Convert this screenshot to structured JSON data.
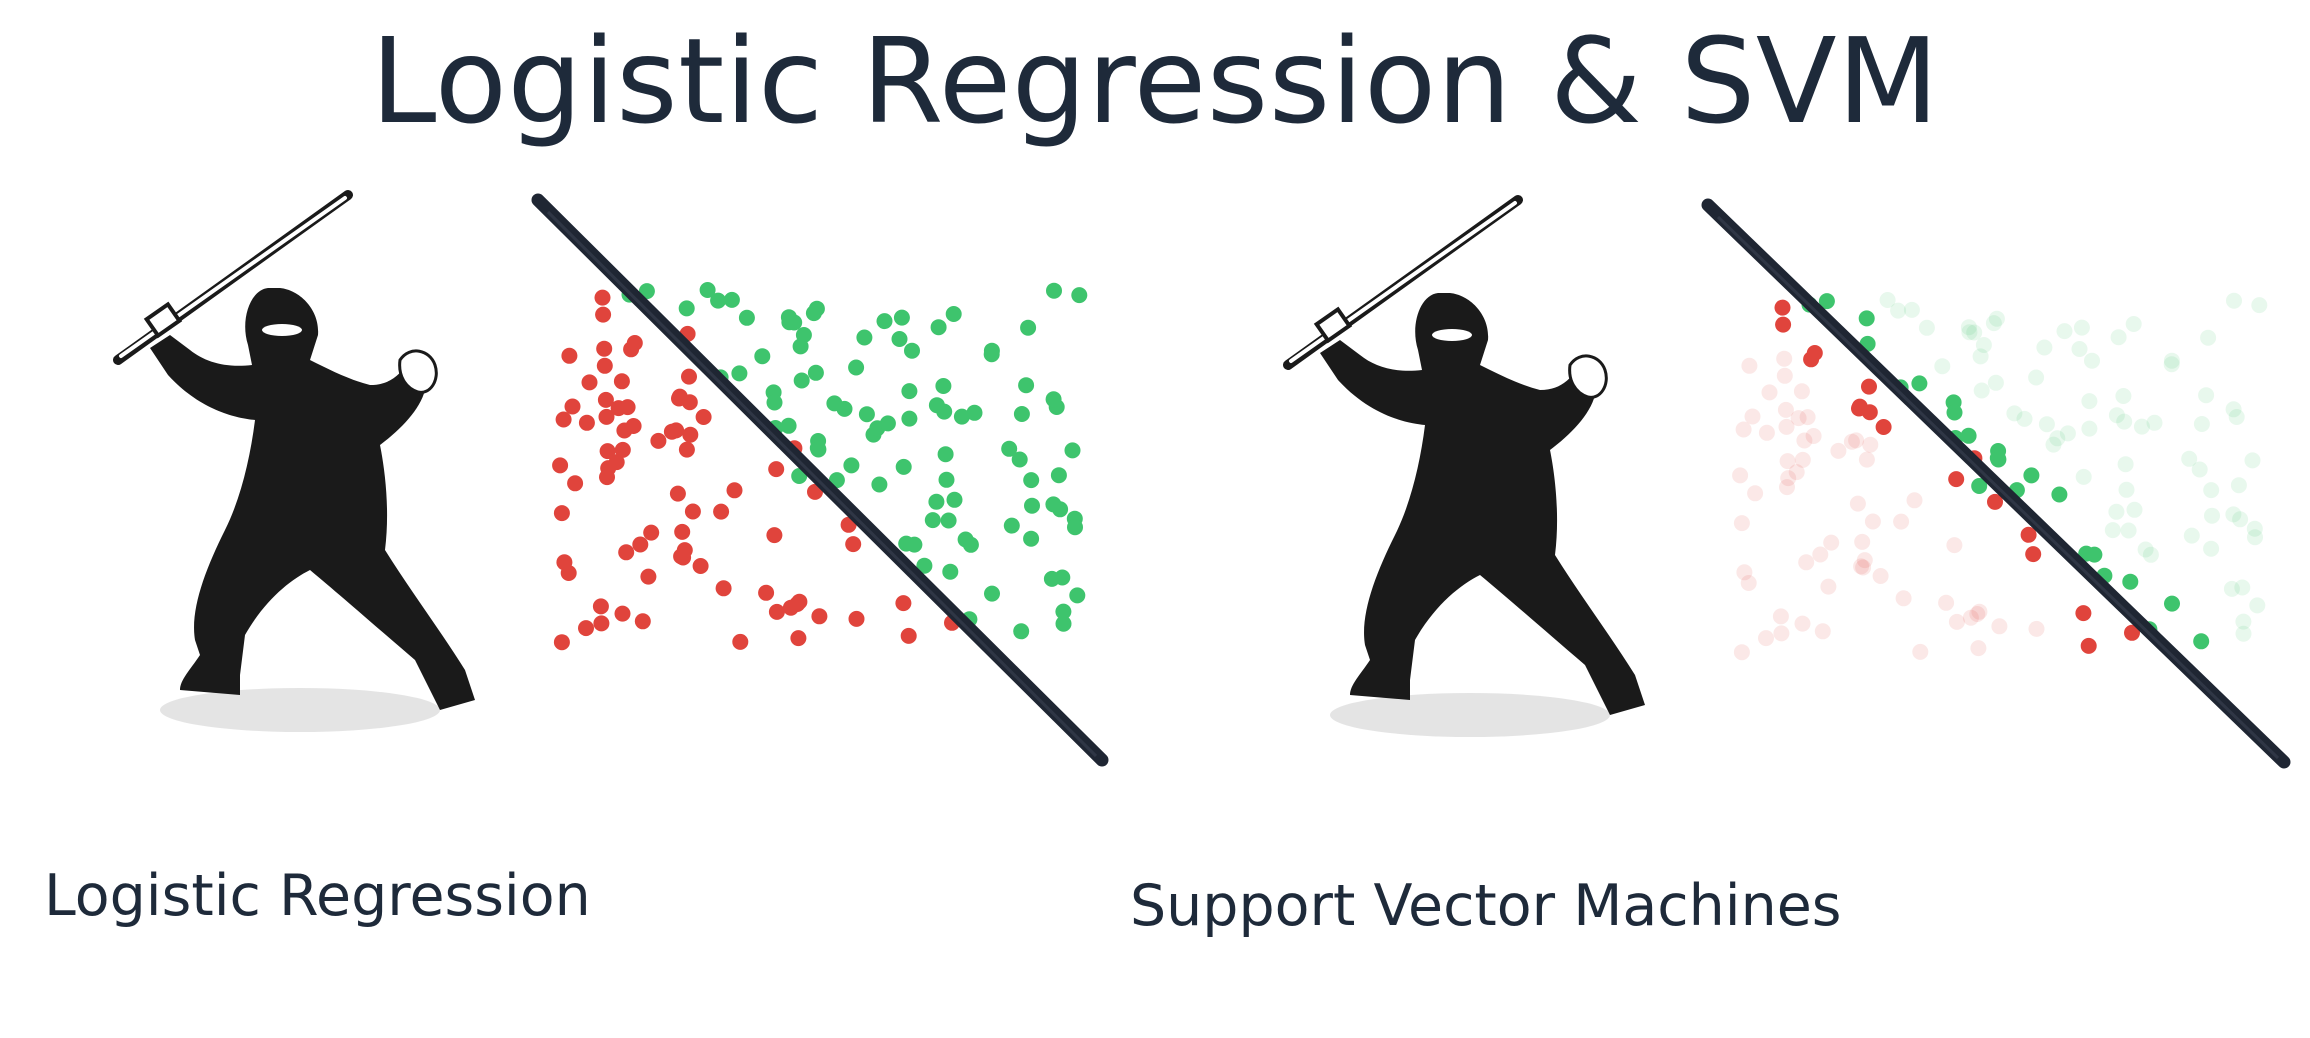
{
  "slide": {
    "title": "Logistic Regression & SVM"
  },
  "panels": {
    "logistic_regression": {
      "caption": "Logistic Regression",
      "points_style": "all-points-emphasized"
    },
    "svm": {
      "caption": "Support Vector Machines",
      "points_style": "only-near-boundary-emphasized"
    }
  },
  "colors": {
    "title_text": "#1e2a3a",
    "class_red": "#e0443c",
    "class_green": "#3ec46d",
    "ninja": "#1a1a1a",
    "boundary": "#1f2633"
  },
  "icons": [
    "ninja-figure-icon",
    "sword-icon",
    "boundary-slash-icon"
  ]
}
